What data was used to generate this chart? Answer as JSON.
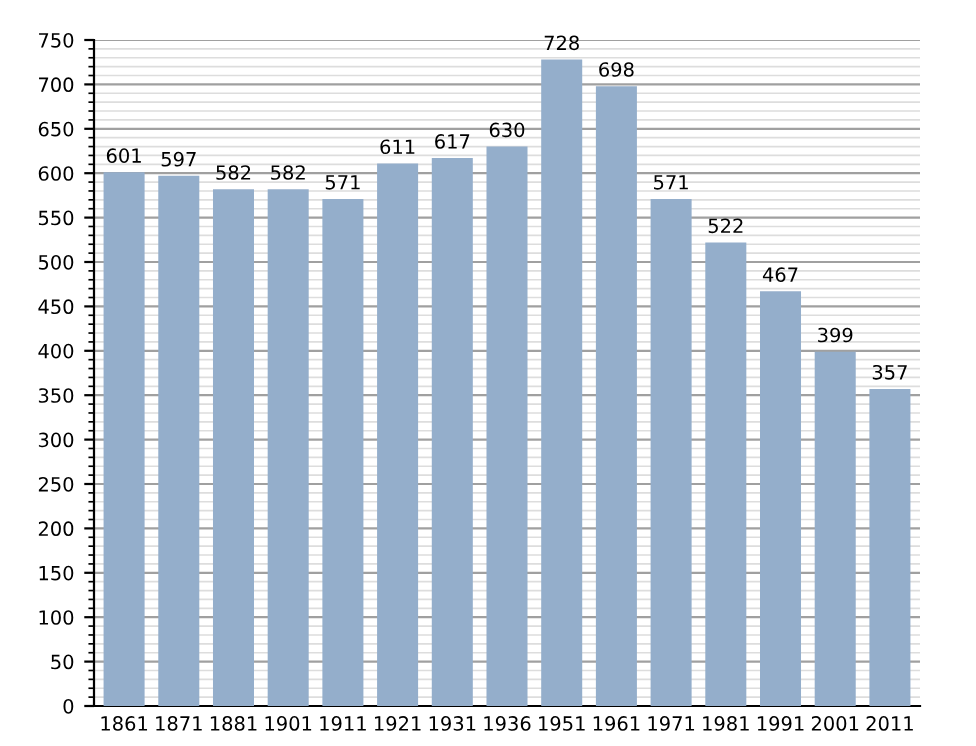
{
  "chart_data": {
    "type": "bar",
    "categories": [
      "1861",
      "1871",
      "1881",
      "1901",
      "1911",
      "1921",
      "1931",
      "1936",
      "1951",
      "1961",
      "1971",
      "1981",
      "1991",
      "2001",
      "2011"
    ],
    "values": [
      601,
      597,
      582,
      582,
      571,
      611,
      617,
      630,
      728,
      698,
      571,
      522,
      467,
      399,
      357
    ],
    "color": "#94aecb",
    "data_labels": true,
    "grid": "y",
    "ylim": [
      0,
      750
    ],
    "yticks": [
      0,
      50,
      100,
      150,
      200,
      250,
      300,
      350,
      400,
      450,
      500,
      550,
      600,
      650,
      700,
      750
    ]
  }
}
